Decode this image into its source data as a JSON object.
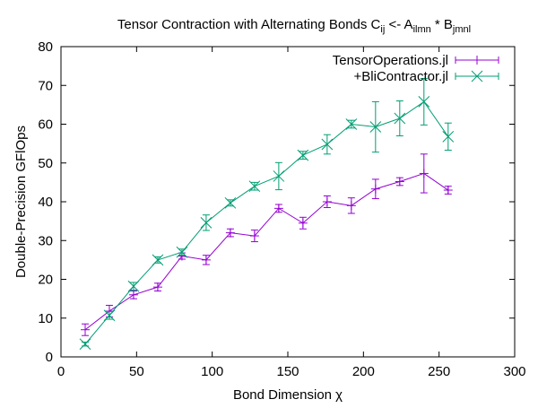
{
  "chart_data": {
    "type": "line",
    "title": {
      "main": "Tensor Contraction with Alternating Bonds C",
      "c_sub": "ij",
      "arrow": " <- A",
      "a_sub": "ilmn",
      "times": " * B",
      "b_sub": "jmnl"
    },
    "xlabel": "Bond Dimension χ",
    "ylabel": "Double-Precision GFlOps",
    "xlim": [
      0,
      300
    ],
    "ylim": [
      0,
      80
    ],
    "xticks": [
      0,
      50,
      100,
      150,
      200,
      250,
      300
    ],
    "yticks": [
      0,
      10,
      20,
      30,
      40,
      50,
      60,
      70,
      80
    ],
    "grid": false,
    "legend_position": "top-right",
    "series": [
      {
        "name": "TensorOperations.jl",
        "color": "#9400d3",
        "marker": "plus",
        "points": [
          {
            "x": 16,
            "y": 7.0,
            "err": 1.5
          },
          {
            "x": 32,
            "y": 11.8,
            "err": 1.5
          },
          {
            "x": 48,
            "y": 16.0,
            "err": 1.0
          },
          {
            "x": 64,
            "y": 18.0,
            "err": 1.0
          },
          {
            "x": 80,
            "y": 26.0,
            "err": 0.8
          },
          {
            "x": 96,
            "y": 25.0,
            "err": 1.2
          },
          {
            "x": 112,
            "y": 32.0,
            "err": 1.0
          },
          {
            "x": 128,
            "y": 31.2,
            "err": 1.5
          },
          {
            "x": 144,
            "y": 38.3,
            "err": 1.0
          },
          {
            "x": 160,
            "y": 34.5,
            "err": 1.5
          },
          {
            "x": 176,
            "y": 40.0,
            "err": 1.5
          },
          {
            "x": 192,
            "y": 39.0,
            "err": 2.0
          },
          {
            "x": 208,
            "y": 43.3,
            "err": 2.5
          },
          {
            "x": 224,
            "y": 45.2,
            "err": 1.0
          },
          {
            "x": 240,
            "y": 47.3,
            "err": 5.0
          },
          {
            "x": 256,
            "y": 43.0,
            "err": 1.0
          }
        ]
      },
      {
        "name": "+BliContractor.jl",
        "color": "#009e73",
        "marker": "cross",
        "points": [
          {
            "x": 16,
            "y": 3.3,
            "err": 0.5
          },
          {
            "x": 32,
            "y": 10.7,
            "err": 1.0
          },
          {
            "x": 48,
            "y": 18.2,
            "err": 1.0
          },
          {
            "x": 64,
            "y": 25.0,
            "err": 0.8
          },
          {
            "x": 80,
            "y": 27.0,
            "err": 0.8
          },
          {
            "x": 96,
            "y": 34.6,
            "err": 2.0
          },
          {
            "x": 112,
            "y": 39.7,
            "err": 0.8
          },
          {
            "x": 128,
            "y": 44.0,
            "err": 1.0
          },
          {
            "x": 144,
            "y": 46.6,
            "err": 3.5
          },
          {
            "x": 160,
            "y": 52.0,
            "err": 1.0
          },
          {
            "x": 176,
            "y": 54.8,
            "err": 2.5
          },
          {
            "x": 192,
            "y": 60.0,
            "err": 1.0
          },
          {
            "x": 208,
            "y": 59.3,
            "err": 6.5
          },
          {
            "x": 224,
            "y": 61.5,
            "err": 4.5
          },
          {
            "x": 240,
            "y": 65.8,
            "err": 6.0
          },
          {
            "x": 256,
            "y": 56.8,
            "err": 3.5
          }
        ]
      }
    ]
  }
}
